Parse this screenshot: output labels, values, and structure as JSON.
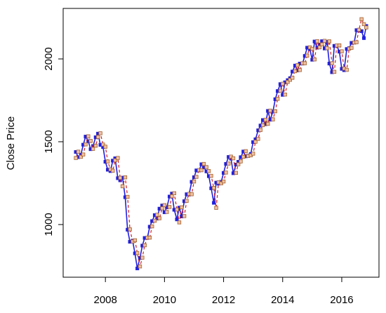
{
  "chart_data": {
    "type": "line",
    "y_label": "Close Price",
    "xlim": [
      2006.57,
      2017.26
    ],
    "xticks": [
      2008,
      2010,
      2012,
      2014,
      2016
    ],
    "ylim": [
      682,
      2305
    ],
    "yticks": [
      1000,
      1500,
      2000
    ],
    "x": [
      2007.0,
      2007.08,
      2007.17,
      2007.25,
      2007.33,
      2007.42,
      2007.5,
      2007.58,
      2007.67,
      2007.75,
      2007.83,
      2007.92,
      2008.0,
      2008.08,
      2008.17,
      2008.25,
      2008.33,
      2008.42,
      2008.5,
      2008.58,
      2008.67,
      2008.75,
      2008.83,
      2008.92,
      2009.0,
      2009.08,
      2009.17,
      2009.25,
      2009.33,
      2009.42,
      2009.5,
      2009.58,
      2009.67,
      2009.75,
      2009.83,
      2009.92,
      2010.0,
      2010.08,
      2010.17,
      2010.25,
      2010.33,
      2010.42,
      2010.5,
      2010.58,
      2010.67,
      2010.75,
      2010.83,
      2010.92,
      2011.0,
      2011.08,
      2011.17,
      2011.25,
      2011.33,
      2011.42,
      2011.5,
      2011.58,
      2011.67,
      2011.75,
      2011.83,
      2011.92,
      2012.0,
      2012.08,
      2012.17,
      2012.25,
      2012.33,
      2012.42,
      2012.5,
      2012.58,
      2012.67,
      2012.75,
      2012.83,
      2012.92,
      2013.0,
      2013.08,
      2013.17,
      2013.25,
      2013.33,
      2013.42,
      2013.5,
      2013.58,
      2013.67,
      2013.75,
      2013.83,
      2013.92,
      2014.0,
      2014.08,
      2014.17,
      2014.25,
      2014.33,
      2014.42,
      2014.5,
      2014.58,
      2014.67,
      2014.75,
      2014.83,
      2014.92,
      2015.0,
      2015.08,
      2015.17,
      2015.25,
      2015.33,
      2015.42,
      2015.5,
      2015.58,
      2015.67,
      2015.75,
      2015.83,
      2015.92,
      2016.0,
      2016.08,
      2016.17,
      2016.25,
      2016.33,
      2016.42,
      2016.5,
      2016.58,
      2016.67,
      2016.75,
      2016.83
    ],
    "series": [
      {
        "color": "#2020e0",
        "style": "solid",
        "marker": "filled",
        "values": [
          1438,
          1407,
          1421,
          1482,
          1531,
          1503,
          1455,
          1474,
          1527,
          1549,
          1481,
          1468,
          1379,
          1331,
          1323,
          1386,
          1400,
          1280,
          1267,
          1283,
          1165,
          969,
          896,
          903,
          826,
          735,
          798,
          873,
          919,
          919,
          987,
          1021,
          1057,
          1036,
          1096,
          1115,
          1074,
          1104,
          1169,
          1187,
          1089,
          1031,
          1102,
          1049,
          1141,
          1183,
          1181,
          1258,
          1286,
          1327,
          1326,
          1364,
          1345,
          1321,
          1292,
          1219,
          1131,
          1253,
          1247,
          1258,
          1312,
          1366,
          1408,
          1398,
          1310,
          1362,
          1379,
          1407,
          1441,
          1412,
          1416,
          1426,
          1498,
          1515,
          1569,
          1598,
          1631,
          1606,
          1686,
          1633,
          1682,
          1757,
          1806,
          1848,
          1783,
          1859,
          1872,
          1884,
          1924,
          1960,
          1931,
          1972,
          1972,
          2018,
          2068,
          2059,
          1995,
          2105,
          2068,
          2086,
          2107,
          2063,
          2104,
          1972,
          1920,
          2079,
          2080,
          2044,
          1940,
          1932,
          2060,
          2065,
          2097,
          2099,
          2174,
          2171,
          2168,
          2126,
          2199
        ]
      },
      {
        "color": "#d02020",
        "style": "dashed",
        "marker": "open",
        "values": [
          1402,
          1440,
          1409,
          1423,
          1484,
          1533,
          1505,
          1457,
          1476,
          1529,
          1551,
          1483,
          1470,
          1381,
          1333,
          1325,
          1388,
          1402,
          1282,
          1231,
          1285,
          1167,
          971,
          898,
          905,
          828,
          747,
          800,
          875,
          921,
          921,
          989,
          1023,
          1059,
          1038,
          1098,
          1117,
          1076,
          1106,
          1171,
          1189,
          1091,
          1013,
          1104,
          1051,
          1143,
          1185,
          1183,
          1260,
          1288,
          1329,
          1328,
          1366,
          1347,
          1323,
          1294,
          1221,
          1101,
          1255,
          1249,
          1260,
          1314,
          1368,
          1410,
          1400,
          1312,
          1364,
          1381,
          1409,
          1443,
          1414,
          1418,
          1428,
          1500,
          1517,
          1571,
          1600,
          1633,
          1608,
          1688,
          1635,
          1684,
          1759,
          1808,
          1850,
          1785,
          1861,
          1874,
          1886,
          1926,
          1962,
          1933,
          1974,
          1974,
          2020,
          2070,
          2061,
          1997,
          2107,
          2070,
          2088,
          2109,
          2065,
          2106,
          1974,
          1922,
          2081,
          2082,
          2046,
          1942,
          1934,
          2062,
          2067,
          2099,
          2101,
          2176,
          2240,
          2210,
          2190
        ]
      }
    ]
  }
}
